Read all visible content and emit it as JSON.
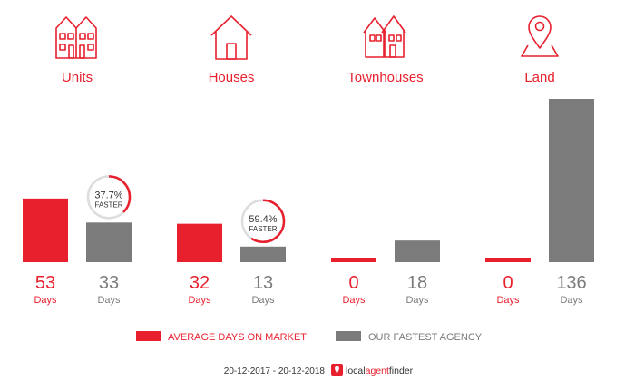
{
  "colors": {
    "market": "#e8202e",
    "agency": "#7b7b7b",
    "ring_track": "#dddddd",
    "text_dark": "#333333"
  },
  "chart_data": {
    "type": "bar",
    "categories": [
      "Units",
      "Houses",
      "Townhouses",
      "Land"
    ],
    "category_icons": [
      "units-icon",
      "house-icon",
      "townhouses-icon",
      "land-pin-icon"
    ],
    "series": [
      {
        "name": "AVERAGE DAYS ON MARKET",
        "values": [
          53,
          32,
          0,
          0
        ]
      },
      {
        "name": "OUR FASTEST AGENCY",
        "values": [
          33,
          13,
          18,
          136
        ]
      }
    ],
    "value_unit": "Days",
    "ylim": [
      0,
      136
    ],
    "legend_position": "bottom",
    "faster": [
      {
        "category": "Units",
        "percent": "37.7%",
        "label": "FASTER",
        "fraction": 0.377
      },
      {
        "category": "Houses",
        "percent": "59.4%",
        "label": "FASTER",
        "fraction": 0.594
      }
    ]
  },
  "footer": {
    "date_range": "20-12-2017 - 20-12-2018",
    "brand_local": "local",
    "brand_agent": "agent",
    "brand_finder": "finder"
  }
}
